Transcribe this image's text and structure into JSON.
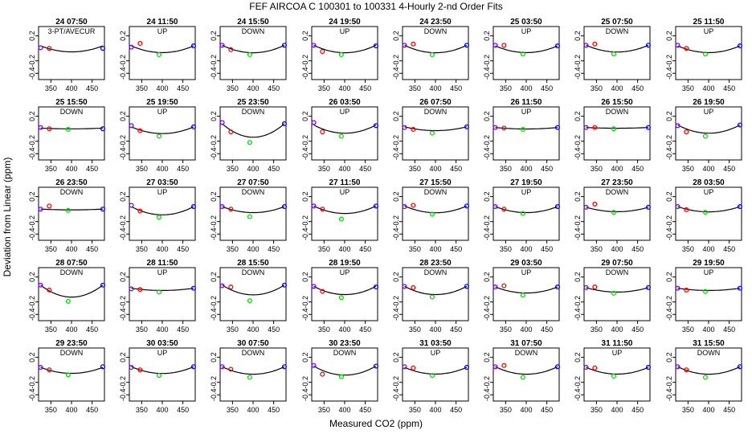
{
  "figure": {
    "title": "FEF   AIRCOA C   100301 to 100331   4-Hourly 2-nd Order Fits",
    "xlabel": "Measured CO2 (ppm)",
    "ylabel": "Deviation from Linear (ppm)"
  },
  "axes_shared": {
    "xlim": [
      320,
      480
    ],
    "ylim": [
      -0.5,
      0.35
    ],
    "xticks": [
      "350",
      "400",
      "450"
    ],
    "yticks": [
      "-0.4",
      "-0.2",
      "0.2"
    ],
    "xtick_values": [
      350,
      400,
      450
    ],
    "ytick_values": [
      -0.4,
      -0.2,
      0.2
    ],
    "grid": false,
    "legend": "none",
    "colors": {
      "std1": "#8000ff",
      "std2": "#ff0000",
      "std3": "#00e000",
      "std4": "#0000ff",
      "fit": "#000000"
    },
    "standard_x": [
      325,
      346,
      392,
      476
    ]
  },
  "chart_data": [
    {
      "type": "scatter",
      "title": "24 07:50",
      "subtitle": "3-PT/AVECUR",
      "points": [
        [
          325,
          0.01
        ],
        [
          346,
          0.0
        ],
        [
          null,
          null
        ],
        [
          476,
          0.0
        ]
      ],
      "fit": [
        0.8,
        0.04
      ]
    },
    {
      "type": "scatter",
      "title": "24 11:50",
      "subtitle": "UP",
      "points": [
        [
          325,
          0.02
        ],
        [
          346,
          0.08
        ],
        [
          392,
          -0.1
        ],
        [
          476,
          0.04
        ]
      ],
      "fit": [
        0.9,
        0.04
      ]
    },
    {
      "type": "scatter",
      "title": "24 15:50",
      "subtitle": "DOWN",
      "points": [
        [
          325,
          0.05
        ],
        [
          346,
          -0.02
        ],
        [
          392,
          -0.1
        ],
        [
          476,
          0.05
        ]
      ],
      "fit": [
        1.0,
        0.05
      ]
    },
    {
      "type": "scatter",
      "title": "24 19:50",
      "subtitle": "UP",
      "points": [
        [
          325,
          0.05
        ],
        [
          346,
          -0.05
        ],
        [
          392,
          -0.1
        ],
        [
          476,
          0.04
        ]
      ],
      "fit": [
        1.0,
        0.05
      ]
    },
    {
      "type": "scatter",
      "title": "24 23:50",
      "subtitle": "DOWN",
      "points": [
        [
          325,
          0.05
        ],
        [
          346,
          0.07
        ],
        [
          392,
          -0.1
        ],
        [
          476,
          0.05
        ]
      ],
      "fit": [
        1.0,
        0.05
      ]
    },
    {
      "type": "scatter",
      "title": "25 03:50",
      "subtitle": "UP",
      "points": [
        [
          325,
          0.05
        ],
        [
          346,
          0.05
        ],
        [
          392,
          -0.09
        ],
        [
          476,
          0.04
        ]
      ],
      "fit": [
        0.9,
        0.04
      ]
    },
    {
      "type": "scatter",
      "title": "25 07:50",
      "subtitle": "DOWN",
      "points": [
        [
          325,
          0.05
        ],
        [
          346,
          0.07
        ],
        [
          392,
          -0.09
        ],
        [
          476,
          0.05
        ]
      ],
      "fit": [
        0.9,
        0.05
      ]
    },
    {
      "type": "scatter",
      "title": "25 11:50",
      "subtitle": "UP",
      "points": [
        [
          325,
          0.05
        ],
        [
          346,
          0.0
        ],
        [
          392,
          -0.09
        ],
        [
          476,
          0.04
        ]
      ],
      "fit": [
        0.9,
        0.04
      ]
    },
    {
      "type": "scatter",
      "title": "25 15:50",
      "subtitle": "DOWN",
      "points": [
        [
          325,
          0.02
        ],
        [
          346,
          0.0
        ],
        [
          392,
          -0.01
        ],
        [
          476,
          0.0
        ]
      ],
      "fit": [
        0.1,
        0.01
      ]
    },
    {
      "type": "scatter",
      "title": "25 19:50",
      "subtitle": "UP",
      "points": [
        [
          325,
          0.05
        ],
        [
          346,
          -0.03
        ],
        [
          392,
          -0.12
        ],
        [
          476,
          0.03
        ]
      ],
      "fit": [
        0.9,
        0.03
      ]
    },
    {
      "type": "scatter",
      "title": "25 23:50",
      "subtitle": "DOWN",
      "points": [
        [
          325,
          0.1
        ],
        [
          346,
          -0.05
        ],
        [
          392,
          -0.22
        ],
        [
          476,
          0.08
        ]
      ],
      "fit": [
        1.8,
        0.08
      ]
    },
    {
      "type": "scatter",
      "title": "26 03:50",
      "subtitle": "UP",
      "points": [
        [
          325,
          0.1
        ],
        [
          346,
          -0.05
        ],
        [
          392,
          -0.12
        ],
        [
          476,
          0.05
        ]
      ],
      "fit": [
        1.1,
        0.06
      ]
    },
    {
      "type": "scatter",
      "title": "26 07:50",
      "subtitle": "DOWN",
      "points": [
        [
          325,
          0.02
        ],
        [
          346,
          -0.01
        ],
        [
          392,
          -0.07
        ],
        [
          476,
          0.03
        ]
      ],
      "fit": [
        0.5,
        0.03
      ]
    },
    {
      "type": "scatter",
      "title": "26 11:50",
      "subtitle": "UP",
      "points": [
        [
          325,
          0.02
        ],
        [
          346,
          0.01
        ],
        [
          392,
          -0.01
        ],
        [
          476,
          0.02
        ]
      ],
      "fit": [
        0.2,
        0.02
      ]
    },
    {
      "type": "scatter",
      "title": "26 15:50",
      "subtitle": "DOWN",
      "points": [
        [
          325,
          0.02
        ],
        [
          346,
          0.02
        ],
        [
          392,
          0.0
        ],
        [
          476,
          0.02
        ]
      ],
      "fit": [
        0.1,
        0.02
      ]
    },
    {
      "type": "scatter",
      "title": "26 19:50",
      "subtitle": "UP",
      "points": [
        [
          325,
          0.05
        ],
        [
          346,
          -0.05
        ],
        [
          392,
          -0.12
        ],
        [
          476,
          0.06
        ]
      ],
      "fit": [
        1.1,
        0.06
      ]
    },
    {
      "type": "scatter",
      "title": "26 23:50",
      "subtitle": "DOWN",
      "points": [
        [
          325,
          0.0
        ],
        [
          346,
          0.05
        ],
        [
          392,
          -0.02
        ],
        [
          476,
          0.0
        ]
      ],
      "fit": [
        0.1,
        0.0
      ]
    },
    {
      "type": "scatter",
      "title": "27 03:50",
      "subtitle": "UP",
      "points": [
        [
          325,
          0.06
        ],
        [
          346,
          -0.03
        ],
        [
          392,
          -0.13
        ],
        [
          476,
          0.04
        ]
      ],
      "fit": [
        1.1,
        0.04
      ]
    },
    {
      "type": "scatter",
      "title": "27 07:50",
      "subtitle": "DOWN",
      "points": [
        [
          325,
          0.04
        ],
        [
          346,
          0.0
        ],
        [
          392,
          -0.12
        ],
        [
          476,
          0.04
        ]
      ],
      "fit": [
        0.8,
        0.04
      ]
    },
    {
      "type": "scatter",
      "title": "27 11:50",
      "subtitle": "UP",
      "points": [
        [
          325,
          0.05
        ],
        [
          346,
          0.0
        ],
        [
          392,
          -0.16
        ],
        [
          476,
          0.05
        ]
      ],
      "fit": [
        1.0,
        0.05
      ]
    },
    {
      "type": "scatter",
      "title": "27 15:50",
      "subtitle": "DOWN",
      "points": [
        [
          325,
          0.04
        ],
        [
          346,
          0.06
        ],
        [
          392,
          -0.08
        ],
        [
          476,
          0.05
        ]
      ],
      "fit": [
        0.9,
        0.05
      ]
    },
    {
      "type": "scatter",
      "title": "27 19:50",
      "subtitle": "UP",
      "points": [
        [
          325,
          0.04
        ],
        [
          346,
          0.0
        ],
        [
          392,
          -0.07
        ],
        [
          476,
          0.04
        ]
      ],
      "fit": [
        0.8,
        0.04
      ]
    },
    {
      "type": "scatter",
      "title": "27 23:50",
      "subtitle": "DOWN",
      "points": [
        [
          325,
          0.03
        ],
        [
          346,
          0.08
        ],
        [
          392,
          -0.05
        ],
        [
          476,
          0.03
        ]
      ],
      "fit": [
        0.6,
        0.03
      ]
    },
    {
      "type": "scatter",
      "title": "28 03:50",
      "subtitle": "UP",
      "points": [
        [
          325,
          0.04
        ],
        [
          346,
          -0.01
        ],
        [
          392,
          -0.05
        ],
        [
          476,
          0.04
        ]
      ],
      "fit": [
        0.7,
        0.04
      ]
    },
    {
      "type": "scatter",
      "title": "28 07:50",
      "subtitle": "DOWN",
      "points": [
        [
          325,
          0.07
        ],
        [
          346,
          -0.01
        ],
        [
          392,
          -0.19
        ],
        [
          476,
          0.07
        ]
      ],
      "fit": [
        1.6,
        0.07
      ]
    },
    {
      "type": "scatter",
      "title": "28 11:50",
      "subtitle": "UP",
      "points": [
        [
          325,
          0.01
        ],
        [
          346,
          0.0
        ],
        [
          392,
          -0.04
        ],
        [
          476,
          0.02
        ]
      ],
      "fit": [
        0.3,
        0.02
      ]
    },
    {
      "type": "scatter",
      "title": "28 15:50",
      "subtitle": "DOWN",
      "points": [
        [
          325,
          0.06
        ],
        [
          346,
          0.04
        ],
        [
          392,
          -0.18
        ],
        [
          476,
          0.07
        ]
      ],
      "fit": [
        1.3,
        0.07
      ]
    },
    {
      "type": "scatter",
      "title": "28 19:50",
      "subtitle": "UP",
      "points": [
        [
          325,
          0.05
        ],
        [
          346,
          -0.03
        ],
        [
          392,
          -0.13
        ],
        [
          476,
          0.04
        ]
      ],
      "fit": [
        1.1,
        0.05
      ]
    },
    {
      "type": "scatter",
      "title": "28 23:50",
      "subtitle": "DOWN",
      "points": [
        [
          325,
          0.05
        ],
        [
          346,
          0.03
        ],
        [
          392,
          -0.12
        ],
        [
          476,
          0.05
        ]
      ],
      "fit": [
        1.1,
        0.05
      ]
    },
    {
      "type": "scatter",
      "title": "29 03:50",
      "subtitle": "UP",
      "points": [
        [
          325,
          0.04
        ],
        [
          346,
          0.06
        ],
        [
          392,
          -0.09
        ],
        [
          476,
          0.04
        ]
      ],
      "fit": [
        0.8,
        0.04
      ]
    },
    {
      "type": "scatter",
      "title": "29 07:50",
      "subtitle": "DOWN",
      "points": [
        [
          325,
          0.03
        ],
        [
          346,
          0.04
        ],
        [
          392,
          -0.06
        ],
        [
          476,
          0.03
        ]
      ],
      "fit": [
        0.6,
        0.03
      ]
    },
    {
      "type": "scatter",
      "title": "29 19:50",
      "subtitle": "UP",
      "points": [
        [
          325,
          0.02
        ],
        [
          346,
          -0.01
        ],
        [
          392,
          -0.03
        ],
        [
          476,
          0.02
        ]
      ],
      "fit": [
        0.3,
        0.02
      ]
    },
    {
      "type": "scatter",
      "title": "29 23:50",
      "subtitle": "DOWN",
      "points": [
        [
          325,
          0.04
        ],
        [
          346,
          0.0
        ],
        [
          392,
          -0.08
        ],
        [
          476,
          0.05
        ]
      ],
      "fit": [
        0.8,
        0.04
      ]
    },
    {
      "type": "scatter",
      "title": "30 03:50",
      "subtitle": "UP",
      "points": [
        [
          325,
          0.04
        ],
        [
          346,
          0.0
        ],
        [
          392,
          -0.09
        ],
        [
          476,
          0.05
        ]
      ],
      "fit": [
        0.9,
        0.05
      ]
    },
    {
      "type": "scatter",
      "title": "30 07:50",
      "subtitle": "DOWN",
      "points": [
        [
          325,
          0.05
        ],
        [
          346,
          0.01
        ],
        [
          392,
          -0.12
        ],
        [
          476,
          0.05
        ]
      ],
      "fit": [
        1.0,
        0.05
      ]
    },
    {
      "type": "scatter",
      "title": "30 23:50",
      "subtitle": "DOWN",
      "points": [
        [
          325,
          0.07
        ],
        [
          346,
          -0.07
        ],
        [
          392,
          -0.11
        ],
        [
          476,
          0.06
        ]
      ],
      "fit": [
        1.2,
        0.06
      ]
    },
    {
      "type": "scatter",
      "title": "31 03:50",
      "subtitle": "UP",
      "points": [
        [
          325,
          0.05
        ],
        [
          346,
          0.03
        ],
        [
          392,
          -0.09
        ],
        [
          476,
          0.04
        ]
      ],
      "fit": [
        0.9,
        0.04
      ]
    },
    {
      "type": "scatter",
      "title": "31 07:50",
      "subtitle": "DOWN",
      "points": [
        [
          325,
          0.05
        ],
        [
          346,
          0.07
        ],
        [
          392,
          -0.12
        ],
        [
          476,
          0.05
        ]
      ],
      "fit": [
        1.0,
        0.05
      ]
    },
    {
      "type": "scatter",
      "title": "31 11:50",
      "subtitle": "UP",
      "points": [
        [
          325,
          0.04
        ],
        [
          346,
          0.03
        ],
        [
          392,
          -0.1
        ],
        [
          476,
          0.04
        ]
      ],
      "fit": [
        0.9,
        0.04
      ]
    },
    {
      "type": "scatter",
      "title": "31 15:50",
      "subtitle": "DOWN",
      "points": [
        [
          325,
          0.05
        ],
        [
          346,
          0.0
        ],
        [
          392,
          -0.12
        ],
        [
          476,
          0.05
        ]
      ],
      "fit": [
        1.0,
        0.05
      ]
    }
  ]
}
